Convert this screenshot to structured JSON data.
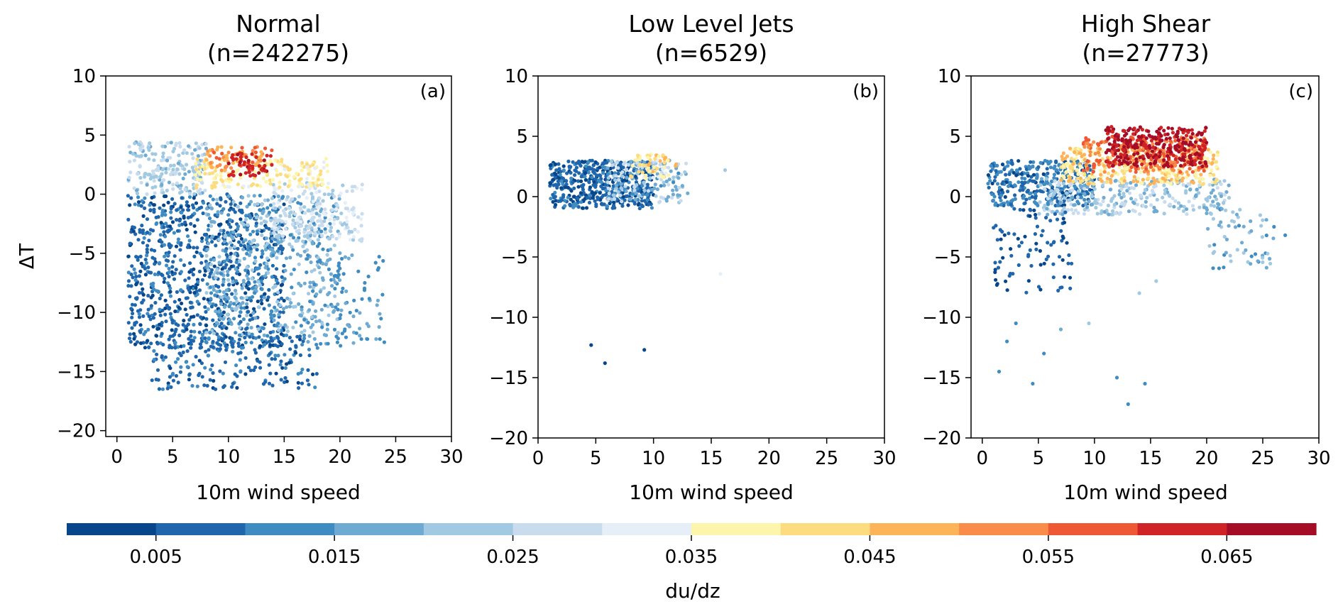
{
  "chart_data": [
    {
      "type": "scatter",
      "id": "a",
      "title": "Normal",
      "subtitle": "(n=242275)",
      "panel_label": "(a)",
      "xlabel": "10m wind speed",
      "ylabel": "ΔT",
      "xlim": [
        -1,
        30
      ],
      "ylim": [
        -20.5,
        10
      ],
      "xticks": [
        "0",
        "5",
        "10",
        "15",
        "20",
        "25",
        "30"
      ],
      "yticks": [
        "10",
        "5",
        "0",
        "−5",
        "−10",
        "−15",
        "−20"
      ],
      "grid": false,
      "clusters": [
        {
          "x": [
            1,
            15
          ],
          "y": [
            -13,
            0
          ],
          "c": [
            0.003,
            0.012
          ],
          "n": 900
        },
        {
          "x": [
            8,
            20
          ],
          "y": [
            -12,
            0
          ],
          "c": [
            0.012,
            0.024
          ],
          "n": 500
        },
        {
          "x": [
            1,
            8
          ],
          "y": [
            0,
            4.5
          ],
          "c": [
            0.018,
            0.03
          ],
          "n": 200
        },
        {
          "x": [
            14,
            22
          ],
          "y": [
            -4,
            1
          ],
          "c": [
            0.022,
            0.033
          ],
          "n": 200
        },
        {
          "x": [
            7,
            19
          ],
          "y": [
            0.5,
            3
          ],
          "c": [
            0.033,
            0.045
          ],
          "n": 180
        },
        {
          "x": [
            8,
            14
          ],
          "y": [
            2,
            4
          ],
          "c": [
            0.045,
            0.058
          ],
          "n": 80
        },
        {
          "x": [
            10,
            14
          ],
          "y": [
            1.5,
            3.5
          ],
          "c": [
            0.06,
            0.068
          ],
          "n": 50
        },
        {
          "x": [
            3,
            18
          ],
          "y": [
            -16.5,
            -12
          ],
          "c": [
            0.004,
            0.012
          ],
          "n": 200
        },
        {
          "x": [
            17,
            24
          ],
          "y": [
            -13,
            -5
          ],
          "c": [
            0.012,
            0.018
          ],
          "n": 100
        }
      ]
    },
    {
      "type": "scatter",
      "id": "b",
      "title": "Low Level Jets",
      "subtitle": "(n=6529)",
      "panel_label": "(b)",
      "xlabel": "10m wind speed",
      "ylabel": "",
      "xlim": [
        0,
        30
      ],
      "ylim": [
        -20,
        10
      ],
      "xticks": [
        "0",
        "5",
        "10",
        "15",
        "20",
        "25",
        "30"
      ],
      "yticks": [
        "10",
        "5",
        "0",
        "−5",
        "−10",
        "−15",
        "−20"
      ],
      "grid": false,
      "clusters": [
        {
          "x": [
            1,
            10
          ],
          "y": [
            -1,
            3
          ],
          "c": [
            0.002,
            0.012
          ],
          "n": 500
        },
        {
          "x": [
            6,
            13
          ],
          "y": [
            -0.5,
            3
          ],
          "c": [
            0.014,
            0.03
          ],
          "n": 150
        },
        {
          "x": [
            8,
            12
          ],
          "y": [
            1.5,
            3.5
          ],
          "c": [
            0.033,
            0.047
          ],
          "n": 60
        }
      ],
      "points": [
        [
          4.6,
          -12.3,
          0.004
        ],
        [
          5.8,
          -13.8,
          0.004
        ],
        [
          9.2,
          -12.7,
          0.004
        ],
        [
          15.8,
          -6.4,
          0.03
        ],
        [
          16.2,
          2.2,
          0.02
        ],
        [
          12.5,
          0.9,
          0.015
        ]
      ]
    },
    {
      "type": "scatter",
      "id": "c",
      "title": "High Shear",
      "subtitle": "(n=27773)",
      "panel_label": "(c)",
      "xlabel": "10m wind speed",
      "ylabel": "",
      "xlim": [
        -1,
        30
      ],
      "ylim": [
        -20,
        10
      ],
      "xticks": [
        "0",
        "5",
        "10",
        "15",
        "20",
        "25",
        "30"
      ],
      "yticks": [
        "10",
        "5",
        "0",
        "−5",
        "−10",
        "−15",
        "−20"
      ],
      "grid": false,
      "clusters": [
        {
          "x": [
            0.5,
            10
          ],
          "y": [
            -0.8,
            3
          ],
          "c": [
            0.004,
            0.015
          ],
          "n": 350
        },
        {
          "x": [
            5,
            22
          ],
          "y": [
            -1.5,
            1.5
          ],
          "c": [
            0.015,
            0.03
          ],
          "n": 300
        },
        {
          "x": [
            7,
            21
          ],
          "y": [
            1,
            4
          ],
          "c": [
            0.035,
            0.05
          ],
          "n": 350
        },
        {
          "x": [
            9,
            20
          ],
          "y": [
            2,
            5
          ],
          "c": [
            0.05,
            0.06
          ],
          "n": 250
        },
        {
          "x": [
            11,
            20
          ],
          "y": [
            2.5,
            5.8
          ],
          "c": [
            0.062,
            0.07
          ],
          "n": 300
        },
        {
          "x": [
            1,
            8
          ],
          "y": [
            -8,
            -1
          ],
          "c": [
            0.002,
            0.01
          ],
          "n": 90
        },
        {
          "x": [
            20,
            26
          ],
          "y": [
            -6,
            -1
          ],
          "c": [
            0.012,
            0.025
          ],
          "n": 60
        }
      ],
      "points": [
        [
          1.5,
          -14.5,
          0.01
        ],
        [
          2.2,
          -12,
          0.01
        ],
        [
          3,
          -10.5,
          0.01
        ],
        [
          4.5,
          -15.5,
          0.012
        ],
        [
          5.5,
          -13,
          0.01
        ],
        [
          7,
          -11,
          0.015
        ],
        [
          9.5,
          -10.5,
          0.02
        ],
        [
          12,
          -15,
          0.01
        ],
        [
          13,
          -17.2,
          0.012
        ],
        [
          14.5,
          -15.5,
          0.012
        ],
        [
          14,
          -8,
          0.02
        ],
        [
          15.5,
          -7,
          0.02
        ],
        [
          26,
          -2.5,
          0.01
        ],
        [
          27,
          -3.2,
          0.01
        ]
      ]
    }
  ],
  "colorbar": {
    "label": "du/dz",
    "min": 0.0,
    "max": 0.07,
    "step": 0.005,
    "ticks": [
      "0.005",
      "0.015",
      "0.025",
      "0.035",
      "0.045",
      "0.055",
      "0.065"
    ],
    "tick_values": [
      0.005,
      0.015,
      0.025,
      0.035,
      0.045,
      0.055,
      0.065
    ],
    "colors": [
      "#08468c",
      "#1f66ac",
      "#3f8cc2",
      "#6eaad2",
      "#a1c9e1",
      "#c8dcee",
      "#e6eef7",
      "#fdf5ac",
      "#fddc80",
      "#fdb458",
      "#f88c48",
      "#ef5834",
      "#d02326",
      "#a50d26"
    ]
  }
}
